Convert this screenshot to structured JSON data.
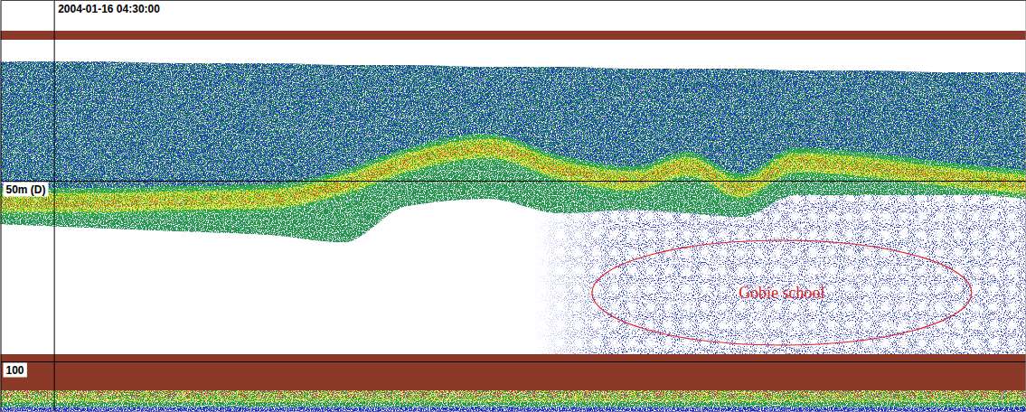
{
  "chart_data": {
    "type": "echogram",
    "xlim": [
      0,
      100
    ],
    "ylim": [
      0,
      114
    ],
    "yticks": [
      {
        "value": 50,
        "label": "50m (D)"
      },
      {
        "value": 100,
        "label": "100"
      }
    ],
    "tick_labels": "y",
    "surface": [
      8.5,
      11
    ],
    "seabed": [
      98,
      108
    ],
    "layer": {
      "x": [
        0,
        8.8,
        17.6,
        26.4,
        33.5,
        39.6,
        47.6,
        54.6,
        61.7,
        67,
        72.2,
        77.5,
        83.7,
        92.5,
        100
      ],
      "top": [
        17,
        17,
        17.5,
        17.5,
        18,
        18,
        18.5,
        18.5,
        19,
        19,
        19,
        19.5,
        19.5,
        20,
        20
      ],
      "core": [
        56,
        56,
        55.5,
        55,
        51,
        45,
        41,
        47,
        50,
        46,
        52,
        45,
        46,
        49,
        51
      ],
      "bottom": [
        62,
        63,
        64,
        65,
        67,
        57,
        55,
        59,
        58,
        59,
        60,
        54,
        54,
        54,
        54
      ]
    },
    "annotations": [
      {
        "text": "2004-01-16 04:30:00",
        "x": 5.3
      },
      {
        "text": "Gobie school",
        "x": 76.2,
        "y": 81,
        "color": "#e02020"
      }
    ]
  }
}
